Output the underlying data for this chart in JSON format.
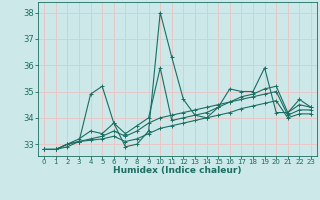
{
  "xlabel": "Humidex (Indice chaleur)",
  "xlim": [
    -0.5,
    23.5
  ],
  "ylim": [
    32.55,
    38.4
  ],
  "yticks": [
    33,
    34,
    35,
    36,
    37,
    38
  ],
  "xticks": [
    0,
    1,
    2,
    3,
    4,
    5,
    6,
    7,
    8,
    9,
    10,
    11,
    12,
    13,
    14,
    15,
    16,
    17,
    18,
    19,
    20,
    21,
    22,
    23
  ],
  "bg_color": "#cce8e8",
  "line_color": "#1a6e62",
  "grid_color": "#e8c8c8",
  "series": [
    [
      32.8,
      32.8,
      32.9,
      33.1,
      34.9,
      35.2,
      33.8,
      32.9,
      33.0,
      33.5,
      38.0,
      36.3,
      34.7,
      34.1,
      34.0,
      34.4,
      35.1,
      35.0,
      35.0,
      35.9,
      34.2,
      34.2,
      34.5,
      34.4
    ],
    [
      32.8,
      32.8,
      33.0,
      33.2,
      33.5,
      33.4,
      33.8,
      33.4,
      33.7,
      34.0,
      35.9,
      33.9,
      34.0,
      34.1,
      34.2,
      34.4,
      34.6,
      34.8,
      34.9,
      35.1,
      35.2,
      34.2,
      34.7,
      34.4
    ],
    [
      32.8,
      32.8,
      33.0,
      33.1,
      33.2,
      33.3,
      33.5,
      33.3,
      33.5,
      33.8,
      34.0,
      34.1,
      34.2,
      34.3,
      34.4,
      34.5,
      34.6,
      34.7,
      34.8,
      34.9,
      35.0,
      34.1,
      34.3,
      34.3
    ],
    [
      32.8,
      32.8,
      33.0,
      33.1,
      33.15,
      33.2,
      33.3,
      33.1,
      33.2,
      33.4,
      33.6,
      33.7,
      33.8,
      33.9,
      34.0,
      34.1,
      34.2,
      34.35,
      34.45,
      34.55,
      34.65,
      34.0,
      34.15,
      34.15
    ]
  ]
}
